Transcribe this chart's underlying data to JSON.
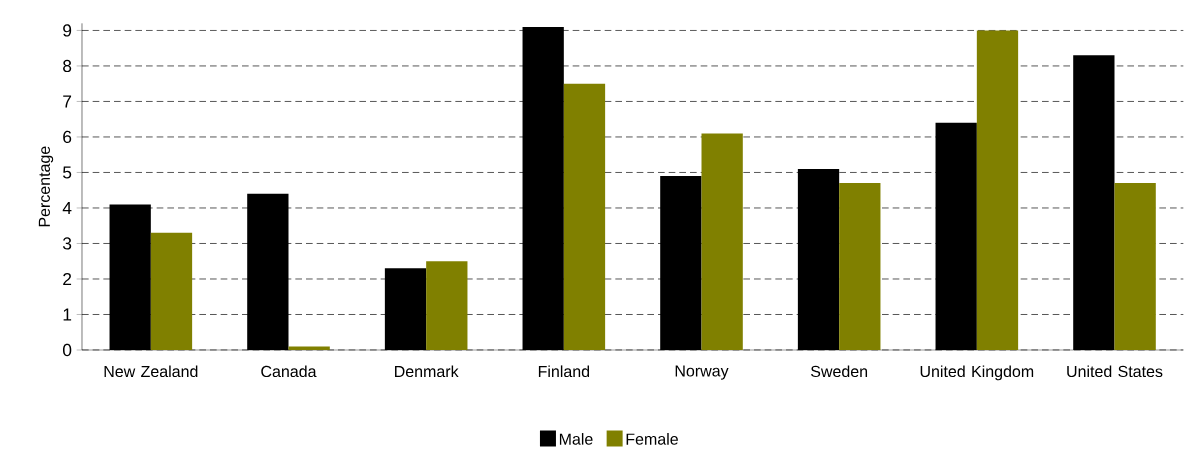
{
  "chart_data": {
    "type": "bar",
    "ylabel": "Percentage",
    "categories": [
      "New Zealand",
      "Canada",
      "Denmark",
      "Finland",
      "Norway",
      "Sweden",
      "United Kingdom",
      "United States"
    ],
    "series": [
      {
        "name": "Male",
        "color": "#000000",
        "values": [
          4.1,
          4.4,
          2.3,
          9.1,
          4.9,
          5.1,
          6.4,
          8.3
        ]
      },
      {
        "name": "Female",
        "color": "#808000",
        "values": [
          3.3,
          0.1,
          2.5,
          7.5,
          6.1,
          4.7,
          9.0,
          4.7
        ]
      }
    ],
    "ylim": [
      0,
      9.2
    ],
    "yticks": [
      0,
      1,
      2,
      3,
      4,
      5,
      6,
      7,
      8,
      9
    ],
    "grid": "y",
    "legend": "bottom"
  }
}
